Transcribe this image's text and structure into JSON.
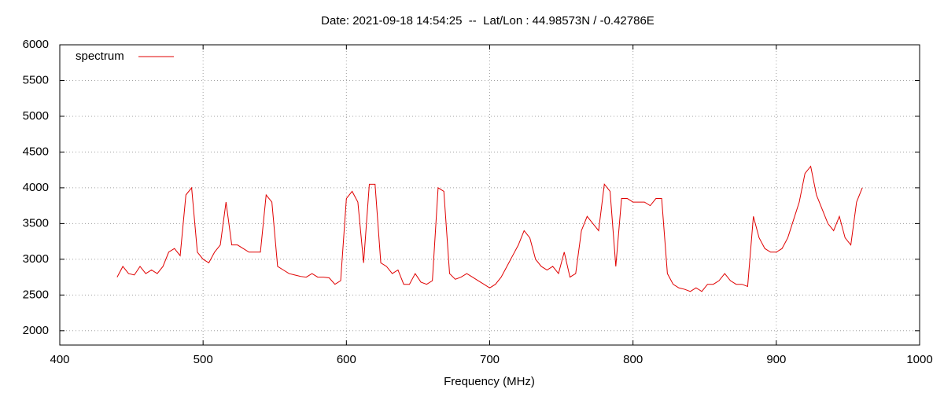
{
  "chart_data": {
    "type": "line",
    "title": "Date: 2021-09-18 14:54:25  --  Lat/Lon : 44.98573N / -0.42786E",
    "xlabel": "Frequency (MHz)",
    "x": [
      440,
      444,
      448,
      452,
      456,
      460,
      464,
      468,
      472,
      476,
      480,
      484,
      488,
      492,
      496,
      500,
      504,
      508,
      512,
      516,
      520,
      524,
      528,
      532,
      536,
      540,
      544,
      548,
      552,
      556,
      560,
      564,
      568,
      572,
      576,
      580,
      584,
      588,
      592,
      596,
      600,
      604,
      608,
      612,
      616,
      620,
      624,
      628,
      632,
      636,
      640,
      644,
      648,
      652,
      656,
      660,
      664,
      668,
      672,
      676,
      680,
      684,
      688,
      692,
      696,
      700,
      704,
      708,
      712,
      716,
      720,
      724,
      728,
      732,
      736,
      740,
      744,
      748,
      752,
      756,
      760,
      764,
      768,
      772,
      776,
      780,
      784,
      788,
      792,
      796,
      800,
      804,
      808,
      812,
      816,
      820,
      824,
      828,
      832,
      836,
      840,
      844,
      848,
      852,
      856,
      860,
      864,
      868,
      872,
      876,
      880,
      884,
      888,
      892,
      896,
      900,
      904,
      908,
      912,
      916,
      920,
      924,
      928,
      932,
      936,
      940,
      944,
      948,
      952,
      956,
      960
    ],
    "series": [
      {
        "name": "spectrum",
        "color": "#e00000",
        "values": [
          2750,
          2900,
          2800,
          2780,
          2900,
          2800,
          2850,
          2800,
          2900,
          3100,
          3150,
          3050,
          3900,
          4000,
          3100,
          3000,
          2950,
          3100,
          3200,
          3800,
          3200,
          3200,
          3150,
          3100,
          3100,
          3100,
          3900,
          3800,
          2900,
          2850,
          2800,
          2780,
          2760,
          2750,
          2800,
          2750,
          2750,
          2740,
          2650,
          2700,
          3850,
          3950,
          3800,
          2950,
          4050,
          4050,
          2950,
          2900,
          2800,
          2850,
          2650,
          2650,
          2800,
          2680,
          2650,
          2700,
          4000,
          3950,
          2800,
          2720,
          2750,
          2800,
          2750,
          2700,
          2650,
          2600,
          2650,
          2750,
          2900,
          3050,
          3200,
          3400,
          3300,
          3000,
          2900,
          2850,
          2900,
          2800,
          3100,
          2750,
          2800,
          3400,
          3600,
          3500,
          3400,
          4050,
          3950,
          2900,
          3850,
          3850,
          3800,
          3800,
          3800,
          3750,
          3850,
          3850,
          2800,
          2650,
          2600,
          2580,
          2550,
          2600,
          2550,
          2650,
          2650,
          2700,
          2800,
          2700,
          2650,
          2650,
          2620,
          3600,
          3300,
          3150,
          3100,
          3100,
          3150,
          3300,
          3550,
          3800,
          4200,
          4300,
          3900,
          3700,
          3500,
          3400,
          3600,
          3300,
          3200,
          3800,
          4000
        ]
      }
    ],
    "xlim": [
      400,
      1000
    ],
    "xticks": [
      400,
      500,
      600,
      700,
      800,
      900,
      1000
    ],
    "ylim": [
      1800,
      6000
    ],
    "yticks": [
      2000,
      2500,
      3000,
      3500,
      4000,
      4500,
      5000,
      5500,
      6000
    ],
    "grid": true,
    "legend": "top-left"
  }
}
